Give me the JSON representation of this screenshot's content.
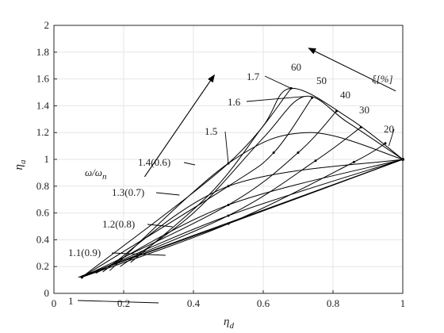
{
  "chart_data": {
    "type": "line",
    "xlabel": "η_d",
    "ylabel": "η_a",
    "xlim": [
      0,
      1
    ],
    "ylim": [
      0,
      2
    ],
    "x_ticks": [
      "0",
      "0.2",
      "0.4",
      "0.6",
      "0.8",
      "1"
    ],
    "y_ticks": [
      "0",
      "0.2",
      "0.4",
      "0.6",
      "0.8",
      "1",
      "1.2",
      "1.4",
      "1.6",
      "1.8",
      "2"
    ],
    "grid": true,
    "colors": {
      "lines": "#000000",
      "grid": "#e6e6e6",
      "axis": "#262626"
    },
    "ratio_curves": [
      {
        "label": "1",
        "points": [
          [
            0.07,
            0.12
          ],
          [
            1.0,
            1.0
          ]
        ]
      },
      {
        "label": "1.1(0.9)",
        "points": [
          [
            0.08,
            0.13
          ],
          [
            0.5,
            0.52
          ],
          [
            1.0,
            1.0
          ]
        ]
      },
      {
        "label": "1.2(0.8)",
        "points": [
          [
            0.1,
            0.14
          ],
          [
            0.5,
            0.58
          ],
          [
            1.0,
            1.0
          ]
        ]
      },
      {
        "label": "1.3(0.7)",
        "points": [
          [
            0.12,
            0.15
          ],
          [
            0.5,
            0.66
          ],
          [
            1.0,
            1.0
          ]
        ]
      },
      {
        "label": "1.4(0.6)",
        "points": [
          [
            0.14,
            0.16
          ],
          [
            0.5,
            0.8
          ],
          [
            1.0,
            1.0
          ]
        ]
      },
      {
        "label": "1.5",
        "points": [
          [
            0.16,
            0.17
          ],
          [
            0.5,
            0.97
          ],
          [
            0.73,
            1.2
          ],
          [
            1.0,
            1.0
          ]
        ]
      },
      {
        "label": "1.6",
        "points": [
          [
            0.19,
            0.2
          ],
          [
            0.4,
            0.6
          ],
          [
            0.6,
            1.16
          ],
          [
            0.72,
            1.47
          ],
          [
            0.84,
            1.28
          ],
          [
            1.0,
            1.0
          ]
        ]
      },
      {
        "label": "1.7",
        "points": [
          [
            0.22,
            0.23
          ],
          [
            0.45,
            0.75
          ],
          [
            0.6,
            1.25
          ],
          [
            0.68,
            1.53
          ],
          [
            0.85,
            1.3
          ],
          [
            1.0,
            1.0
          ]
        ]
      }
    ],
    "damping_curves": [
      {
        "label": "60",
        "points": [
          [
            0.08,
            0.12
          ],
          [
            0.5,
            0.97
          ],
          [
            0.68,
            1.53
          ]
        ]
      },
      {
        "label": "50",
        "points": [
          [
            0.08,
            0.12
          ],
          [
            0.5,
            0.8
          ],
          [
            0.63,
            1.05
          ],
          [
            0.74,
            1.46
          ]
        ]
      },
      {
        "label": "40",
        "points": [
          [
            0.08,
            0.12
          ],
          [
            0.5,
            0.66
          ],
          [
            0.7,
            1.05
          ],
          [
            0.81,
            1.36
          ]
        ]
      },
      {
        "label": "30",
        "points": [
          [
            0.08,
            0.12
          ],
          [
            0.5,
            0.58
          ],
          [
            0.75,
            0.99
          ],
          [
            0.88,
            1.24
          ]
        ]
      },
      {
        "label": "20",
        "points": [
          [
            0.08,
            0.12
          ],
          [
            0.5,
            0.52
          ],
          [
            0.86,
            0.98
          ],
          [
            0.95,
            1.12
          ]
        ]
      }
    ],
    "annotations": {
      "omega_label": "ω/ω",
      "omega_sub": "n",
      "xi_label": "ξ[%]",
      "xlabel_main": "η",
      "xlabel_sub": "d",
      "ylabel_main": "η",
      "ylabel_sub": "a",
      "omega_arrow": {
        "from": [
          0.26,
          0.87
        ],
        "to": [
          0.46,
          1.63
        ]
      },
      "xi_arrow": {
        "from": [
          0.98,
          1.51
        ],
        "to": [
          0.73,
          1.83
        ]
      }
    }
  }
}
